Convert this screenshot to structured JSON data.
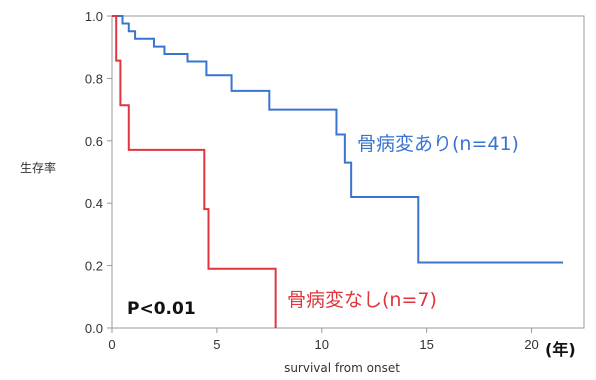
{
  "chart_data": {
    "type": "line",
    "step": true,
    "ylabel": "生存率",
    "xlabel": "survival from onset",
    "x_unit_label": "(年)",
    "xlim": [
      0,
      22.5
    ],
    "ylim": [
      0,
      1.0
    ],
    "x_ticks": [
      0,
      5,
      10,
      15,
      20
    ],
    "y_ticks": [
      0.0,
      0.2,
      0.4,
      0.6,
      0.8,
      1.0
    ],
    "x_tick_labels": [
      "0",
      "5",
      "10",
      "15",
      "20"
    ],
    "y_tick_labels": [
      "0.0",
      "0.2",
      "0.4",
      "0.6",
      "0.8",
      "1.0"
    ],
    "grid": false,
    "annotation": "P<0.01",
    "series": [
      {
        "name": "骨病変あり(n=41)",
        "color": "#3a74d1",
        "points": [
          [
            0,
            1.0
          ],
          [
            0.5,
            1.0
          ],
          [
            0.5,
            0.976
          ],
          [
            0.8,
            0.976
          ],
          [
            0.8,
            0.951
          ],
          [
            1.1,
            0.951
          ],
          [
            1.1,
            0.927
          ],
          [
            2.0,
            0.927
          ],
          [
            2.0,
            0.902
          ],
          [
            2.5,
            0.902
          ],
          [
            2.5,
            0.878
          ],
          [
            3.6,
            0.878
          ],
          [
            3.6,
            0.854
          ],
          [
            4.5,
            0.854
          ],
          [
            4.5,
            0.81
          ],
          [
            5.7,
            0.81
          ],
          [
            5.7,
            0.76
          ],
          [
            7.5,
            0.76
          ],
          [
            7.5,
            0.7
          ],
          [
            10.7,
            0.7
          ],
          [
            10.7,
            0.62
          ],
          [
            11.1,
            0.62
          ],
          [
            11.1,
            0.53
          ],
          [
            11.4,
            0.53
          ],
          [
            11.4,
            0.42
          ],
          [
            14.6,
            0.42
          ],
          [
            14.6,
            0.21
          ],
          [
            21.5,
            0.21
          ]
        ]
      },
      {
        "name": "骨病変なし(n=7)",
        "color": "#e0353d",
        "points": [
          [
            0,
            1.0
          ],
          [
            0.2,
            1.0
          ],
          [
            0.2,
            0.857
          ],
          [
            0.4,
            0.857
          ],
          [
            0.4,
            0.714
          ],
          [
            0.8,
            0.714
          ],
          [
            0.8,
            0.571
          ],
          [
            4.4,
            0.571
          ],
          [
            4.4,
            0.381
          ],
          [
            4.6,
            0.381
          ],
          [
            4.6,
            0.19
          ],
          [
            7.8,
            0.19
          ],
          [
            7.8,
            0.0
          ]
        ]
      }
    ]
  }
}
